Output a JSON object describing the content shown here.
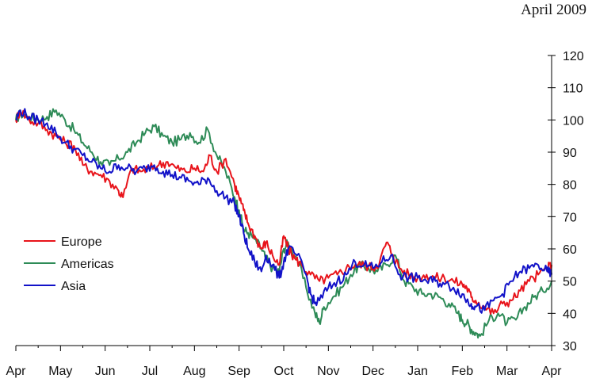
{
  "header": {
    "date_label": "April 2009"
  },
  "chart_data": {
    "type": "line",
    "title": "",
    "xlabel": "",
    "ylabel": "",
    "x_tick_labels": [
      "Apr",
      "May",
      "Jun",
      "Jul",
      "Aug",
      "Sep",
      "Oct",
      "Nov",
      "Dec",
      "Jan",
      "Feb",
      "Mar",
      "Apr"
    ],
    "y_ticks": [
      30,
      40,
      50,
      60,
      70,
      80,
      90,
      100,
      110,
      120
    ],
    "ylim": [
      30,
      120
    ],
    "xlim": [
      0,
      12
    ],
    "y_axis_side": "right",
    "grid": false,
    "legend_position": "left",
    "series": [
      {
        "name": "Europe",
        "color": "#e8141b",
        "x": [
          0,
          0.1,
          0.3,
          0.5,
          0.7,
          0.9,
          1.1,
          1.3,
          1.5,
          1.7,
          1.9,
          2.1,
          2.3,
          2.4,
          2.6,
          2.8,
          3.0,
          3.2,
          3.4,
          3.6,
          3.8,
          4.0,
          4.2,
          4.35,
          4.5,
          4.7,
          4.9,
          5.0,
          5.1,
          5.2,
          5.35,
          5.5,
          5.6,
          5.75,
          5.9,
          6.0,
          6.1,
          6.25,
          6.4,
          6.6,
          6.8,
          7.0,
          7.2,
          7.4,
          7.6,
          7.8,
          8.0,
          8.15,
          8.3,
          8.45,
          8.6,
          8.8,
          9.0,
          9.2,
          9.4,
          9.6,
          9.8,
          10.0,
          10.1,
          10.2,
          10.3,
          10.5,
          10.7,
          10.9,
          11.1,
          11.3,
          11.5,
          11.7,
          11.9,
          12.0
        ],
        "y": [
          100,
          103,
          100,
          99,
          97,
          95,
          93,
          92,
          86,
          84,
          83,
          81,
          78,
          76,
          85,
          84,
          85,
          86,
          87,
          85,
          84,
          85,
          84,
          89,
          84,
          88,
          80,
          76,
          72,
          68,
          64,
          60,
          62,
          58,
          55,
          64,
          60,
          57,
          55,
          52,
          50,
          51,
          52,
          54,
          55,
          55,
          54,
          56,
          62,
          58,
          54,
          52,
          51,
          52,
          51,
          51,
          50,
          49,
          48,
          45,
          44,
          42,
          40,
          43,
          44,
          47,
          50,
          52,
          54,
          55
        ]
      },
      {
        "name": "Americas",
        "color": "#2e8b57",
        "x": [
          0,
          0.1,
          0.3,
          0.5,
          0.7,
          0.9,
          1.1,
          1.3,
          1.5,
          1.7,
          1.9,
          2.1,
          2.3,
          2.5,
          2.7,
          2.9,
          3.1,
          3.3,
          3.5,
          3.7,
          3.9,
          4.1,
          4.3,
          4.5,
          4.7,
          4.9,
          5.0,
          5.1,
          5.2,
          5.35,
          5.5,
          5.6,
          5.75,
          5.9,
          6.0,
          6.1,
          6.3,
          6.5,
          6.7,
          6.8,
          6.9,
          7.1,
          7.3,
          7.5,
          7.7,
          7.9,
          8.1,
          8.3,
          8.5,
          8.7,
          8.9,
          9.1,
          9.3,
          9.5,
          9.7,
          9.9,
          10.0,
          10.1,
          10.2,
          10.3,
          10.4,
          10.6,
          10.8,
          11.0,
          11.2,
          11.4,
          11.6,
          11.8,
          12.0
        ],
        "y": [
          100,
          102,
          101,
          100,
          101,
          103,
          100,
          97,
          93,
          90,
          87,
          86,
          88,
          90,
          93,
          96,
          98,
          95,
          93,
          94,
          96,
          93,
          97,
          89,
          84,
          76,
          72,
          66,
          65,
          63,
          60,
          57,
          54,
          53,
          60,
          62,
          57,
          48,
          40,
          37,
          42,
          45,
          48,
          52,
          55,
          54,
          53,
          55,
          58,
          50,
          48,
          46,
          46,
          45,
          43,
          40,
          38,
          37,
          35,
          34,
          33,
          38,
          40,
          37,
          38,
          42,
          45,
          47,
          50
        ]
      },
      {
        "name": "Asia",
        "color": "#1212c8",
        "x": [
          0,
          0.1,
          0.3,
          0.5,
          0.7,
          0.9,
          1.1,
          1.3,
          1.5,
          1.7,
          1.9,
          2.1,
          2.3,
          2.5,
          2.7,
          2.9,
          3.1,
          3.3,
          3.5,
          3.7,
          3.9,
          4.1,
          4.3,
          4.5,
          4.7,
          4.9,
          5.0,
          5.1,
          5.2,
          5.35,
          5.5,
          5.6,
          5.75,
          5.9,
          6.0,
          6.1,
          6.3,
          6.5,
          6.6,
          6.7,
          6.8,
          7.0,
          7.2,
          7.4,
          7.6,
          7.8,
          8.0,
          8.2,
          8.4,
          8.6,
          8.8,
          9.0,
          9.2,
          9.4,
          9.6,
          9.8,
          10.0,
          10.1,
          10.2,
          10.3,
          10.5,
          10.7,
          10.9,
          11.1,
          11.3,
          11.5,
          11.7,
          11.9,
          12.0
        ],
        "y": [
          100,
          103,
          101,
          100,
          99,
          96,
          93,
          91,
          89,
          87,
          85,
          84,
          86,
          85,
          84,
          85,
          86,
          84,
          83,
          82,
          81,
          80,
          82,
          78,
          76,
          74,
          70,
          65,
          60,
          56,
          53,
          58,
          55,
          51,
          56,
          60,
          58,
          52,
          46,
          43,
          44,
          48,
          50,
          52,
          56,
          55,
          54,
          56,
          58,
          52,
          51,
          51,
          50,
          50,
          49,
          48,
          46,
          44,
          43,
          42,
          41,
          44,
          46,
          50,
          53,
          54,
          55,
          53,
          52
        ]
      }
    ]
  }
}
